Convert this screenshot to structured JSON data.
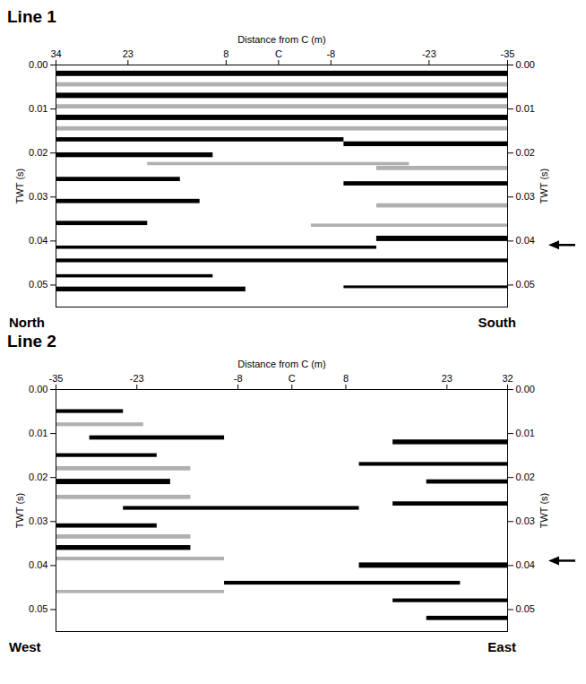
{
  "chart_data": [
    {
      "type": "wiggle",
      "title": "Line 1",
      "xlabel": "Distance from C (m)",
      "ylabel": "TWT (s)",
      "xlim": [
        34,
        -35
      ],
      "xticks": [
        34,
        23,
        8,
        {
          "value": 0,
          "label": "C"
        },
        -8,
        -23,
        -35
      ],
      "ylim": [
        0,
        0.055
      ],
      "yticks": [
        {
          "value": 0,
          "label": "0.00"
        },
        {
          "value": 0.01,
          "label": "0.01"
        },
        {
          "value": 0.02,
          "label": "0.02"
        },
        {
          "value": 0.03,
          "label": "0.03"
        },
        {
          "value": 0.04,
          "label": "0.04"
        },
        {
          "value": 0.05,
          "label": "0.05"
        }
      ],
      "left_label": "North",
      "right_label": "South",
      "arrow_twt": 0.041,
      "reflectors": [
        {
          "x": [
            34,
            -35
          ],
          "twt": 0.002,
          "amplitude": 1.0,
          "color": "#000000"
        },
        {
          "x": [
            34,
            -35
          ],
          "twt": 0.0045,
          "amplitude": 0.8,
          "color": "#b0b0b0"
        },
        {
          "x": [
            34,
            -35
          ],
          "twt": 0.007,
          "amplitude": 1.0,
          "color": "#000000"
        },
        {
          "x": [
            34,
            -35
          ],
          "twt": 0.0095,
          "amplitude": 0.8,
          "color": "#b0b0b0"
        },
        {
          "x": [
            34,
            -35
          ],
          "twt": 0.012,
          "amplitude": 1.0,
          "color": "#000000"
        },
        {
          "x": [
            34,
            -35
          ],
          "twt": 0.0145,
          "amplitude": 0.8,
          "color": "#b0b0b0"
        },
        {
          "x": [
            34,
            -10
          ],
          "twt": 0.017,
          "amplitude": 0.8,
          "color": "#000000"
        },
        {
          "x": [
            -10,
            -35
          ],
          "twt": 0.018,
          "amplitude": 0.9,
          "color": "#000000"
        },
        {
          "x": [
            34,
            10
          ],
          "twt": 0.0205,
          "amplitude": 0.9,
          "color": "#000000"
        },
        {
          "x": [
            20,
            -20
          ],
          "twt": 0.0225,
          "amplitude": 0.6,
          "color": "#b0b0b0"
        },
        {
          "x": [
            -15,
            -35
          ],
          "twt": 0.0235,
          "amplitude": 0.8,
          "color": "#b0b0b0"
        },
        {
          "x": [
            34,
            15
          ],
          "twt": 0.026,
          "amplitude": 0.8,
          "color": "#000000"
        },
        {
          "x": [
            -10,
            -35
          ],
          "twt": 0.027,
          "amplitude": 0.8,
          "color": "#000000"
        },
        {
          "x": [
            34,
            12
          ],
          "twt": 0.031,
          "amplitude": 0.8,
          "color": "#000000"
        },
        {
          "x": [
            -15,
            -35
          ],
          "twt": 0.032,
          "amplitude": 0.8,
          "color": "#b0b0b0"
        },
        {
          "x": [
            34,
            20
          ],
          "twt": 0.036,
          "amplitude": 0.8,
          "color": "#000000"
        },
        {
          "x": [
            -5,
            -35
          ],
          "twt": 0.0365,
          "amplitude": 0.6,
          "color": "#b0b0b0"
        },
        {
          "x": [
            -15,
            -35
          ],
          "twt": 0.0395,
          "amplitude": 1.0,
          "color": "#000000"
        },
        {
          "x": [
            34,
            -15
          ],
          "twt": 0.0415,
          "amplitude": 0.6,
          "color": "#000000"
        },
        {
          "x": [
            34,
            -35
          ],
          "twt": 0.0445,
          "amplitude": 0.7,
          "color": "#000000"
        },
        {
          "x": [
            34,
            10
          ],
          "twt": 0.048,
          "amplitude": 0.6,
          "color": "#000000"
        },
        {
          "x": [
            34,
            5
          ],
          "twt": 0.051,
          "amplitude": 0.9,
          "color": "#000000"
        },
        {
          "x": [
            -10,
            -35
          ],
          "twt": 0.0505,
          "amplitude": 0.5,
          "color": "#000000"
        }
      ]
    },
    {
      "type": "wiggle",
      "title": "Line 2",
      "xlabel": "Distance from C (m)",
      "ylabel": "TWT (s)",
      "xlim": [
        -35,
        32
      ],
      "xticks": [
        -35,
        -23,
        -8,
        {
          "value": 0,
          "label": "C"
        },
        8,
        23,
        32
      ],
      "ylim": [
        0,
        0.055
      ],
      "yticks": [
        {
          "value": 0,
          "label": "0.00"
        },
        {
          "value": 0.01,
          "label": "0.01"
        },
        {
          "value": 0.02,
          "label": "0.02"
        },
        {
          "value": 0.03,
          "label": "0.03"
        },
        {
          "value": 0.04,
          "label": "0.04"
        },
        {
          "value": 0.05,
          "label": "0.05"
        }
      ],
      "left_label": "West",
      "right_label": "East",
      "arrow_twt": 0.039,
      "reflectors": [
        {
          "x": [
            -35,
            -25
          ],
          "twt": 0.005,
          "amplitude": 0.7,
          "color": "#000000"
        },
        {
          "x": [
            -35,
            -22
          ],
          "twt": 0.008,
          "amplitude": 0.7,
          "color": "#b0b0b0"
        },
        {
          "x": [
            -30,
            -10
          ],
          "twt": 0.011,
          "amplitude": 0.8,
          "color": "#000000"
        },
        {
          "x": [
            15,
            32
          ],
          "twt": 0.012,
          "amplitude": 0.9,
          "color": "#000000"
        },
        {
          "x": [
            -35,
            -20
          ],
          "twt": 0.015,
          "amplitude": 0.7,
          "color": "#000000"
        },
        {
          "x": [
            -35,
            -15
          ],
          "twt": 0.018,
          "amplitude": 0.8,
          "color": "#b0b0b0"
        },
        {
          "x": [
            10,
            32
          ],
          "twt": 0.017,
          "amplitude": 0.7,
          "color": "#000000"
        },
        {
          "x": [
            -35,
            -18
          ],
          "twt": 0.021,
          "amplitude": 1.0,
          "color": "#000000"
        },
        {
          "x": [
            20,
            32
          ],
          "twt": 0.021,
          "amplitude": 0.8,
          "color": "#000000"
        },
        {
          "x": [
            -35,
            -15
          ],
          "twt": 0.0245,
          "amplitude": 0.8,
          "color": "#b0b0b0"
        },
        {
          "x": [
            -25,
            10
          ],
          "twt": 0.027,
          "amplitude": 0.7,
          "color": "#000000"
        },
        {
          "x": [
            15,
            32
          ],
          "twt": 0.026,
          "amplitude": 0.8,
          "color": "#000000"
        },
        {
          "x": [
            -35,
            -20
          ],
          "twt": 0.031,
          "amplitude": 0.8,
          "color": "#000000"
        },
        {
          "x": [
            -35,
            -15
          ],
          "twt": 0.0335,
          "amplitude": 0.8,
          "color": "#b0b0b0"
        },
        {
          "x": [
            -35,
            -15
          ],
          "twt": 0.036,
          "amplitude": 0.9,
          "color": "#000000"
        },
        {
          "x": [
            -35,
            -10
          ],
          "twt": 0.0385,
          "amplitude": 0.7,
          "color": "#b0b0b0"
        },
        {
          "x": [
            10,
            32
          ],
          "twt": 0.04,
          "amplitude": 1.0,
          "color": "#000000"
        },
        {
          "x": [
            -10,
            25
          ],
          "twt": 0.044,
          "amplitude": 0.7,
          "color": "#000000"
        },
        {
          "x": [
            -35,
            -10
          ],
          "twt": 0.046,
          "amplitude": 0.6,
          "color": "#b0b0b0"
        },
        {
          "x": [
            15,
            32
          ],
          "twt": 0.048,
          "amplitude": 0.7,
          "color": "#000000"
        },
        {
          "x": [
            20,
            32
          ],
          "twt": 0.052,
          "amplitude": 0.8,
          "color": "#000000"
        }
      ]
    }
  ]
}
